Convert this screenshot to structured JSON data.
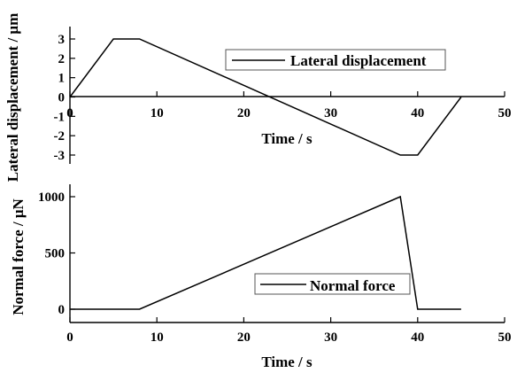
{
  "chart_data": [
    {
      "type": "line",
      "title": "",
      "xlabel": "Time / s",
      "ylabel": "Lateral displacement / μm",
      "xlim": [
        0,
        50
      ],
      "ylim": [
        -3,
        3
      ],
      "xticks": [
        "0",
        "10",
        "20",
        "30",
        "40",
        "50"
      ],
      "yticks": [
        "-3",
        "-2",
        "-1",
        "0",
        "1",
        "2",
        "3"
      ],
      "grid": false,
      "legend_position": "top-right",
      "series": [
        {
          "name": "Lateral displacement",
          "x": [
            0,
            5,
            8,
            38,
            40,
            45
          ],
          "y": [
            0,
            3,
            3,
            -3,
            -3,
            0
          ]
        }
      ]
    },
    {
      "type": "line",
      "title": "",
      "xlabel": "Time / s",
      "ylabel": "Normal force / μN",
      "xlim": [
        0,
        50
      ],
      "ylim": [
        0,
        1000
      ],
      "xticks": [
        "0",
        "10",
        "20",
        "30",
        "40",
        "50"
      ],
      "yticks": [
        "0",
        "500",
        "1000"
      ],
      "grid": false,
      "legend_position": "bottom-right",
      "series": [
        {
          "name": "Normal force",
          "x": [
            0,
            8,
            38,
            40,
            45
          ],
          "y": [
            0,
            0,
            1000,
            0,
            0
          ]
        }
      ]
    }
  ]
}
